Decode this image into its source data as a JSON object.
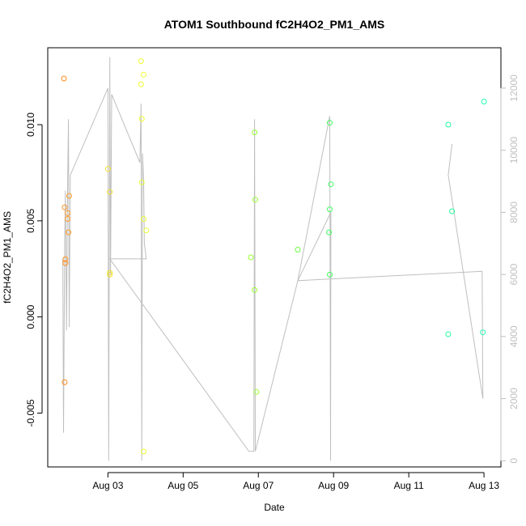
{
  "chart_data": {
    "type": "scatter",
    "title": "ATOM1 Southbound fC2H4O2_PM1_AMS",
    "xlabel": "Date",
    "ylabel": "fC2H4O2_PM1_AMS",
    "x_ticks": [
      "Aug 03",
      "Aug 05",
      "Aug 07",
      "Aug 09",
      "Aug 11",
      "Aug 13"
    ],
    "x_tick_values": [
      3,
      5,
      7,
      9,
      11,
      13
    ],
    "xlim": [
      1.4,
      13.45
    ],
    "y_ticks": [
      "-0.005",
      "0.000",
      "0.005",
      "0.010"
    ],
    "y_tick_values": [
      -0.005,
      0,
      0.005,
      0.01
    ],
    "ylim": [
      -0.0078,
      0.014
    ],
    "y2_ticks": [
      "0",
      "2000",
      "4000",
      "6000",
      "8000",
      "10000",
      "12000"
    ],
    "y2_tick_values": [
      0,
      2000,
      4000,
      6000,
      8000,
      10000,
      12000
    ],
    "y2lim": [
      -200,
      13300
    ],
    "grid": false,
    "legend": "none",
    "colors": {
      "line": "#bfbfbf",
      "points": [
        "#ff7f00",
        "#ffa500",
        "#ffd700",
        "#f5ff00",
        "#c8ff32",
        "#9aff4a",
        "#5cff62",
        "#2eff80",
        "#00ffa0"
      ]
    },
    "points": [
      {
        "x": 1.83,
        "y": 0.0124,
        "color": "#ff8c1a"
      },
      {
        "x": 1.85,
        "y": 0.0057,
        "color": "#ff9020"
      },
      {
        "x": 1.87,
        "y": 0.003,
        "color": "#ff9020"
      },
      {
        "x": 1.87,
        "y": 0.0028,
        "color": "#ff9020"
      },
      {
        "x": 1.85,
        "y": -0.0034,
        "color": "#ff8c1a"
      },
      {
        "x": 1.93,
        "y": 0.0054,
        "color": "#ff9a22"
      },
      {
        "x": 1.93,
        "y": 0.0051,
        "color": "#ff9a22"
      },
      {
        "x": 1.95,
        "y": 0.0044,
        "color": "#ff9a22"
      },
      {
        "x": 1.97,
        "y": 0.0063,
        "color": "#ffa028"
      },
      {
        "x": 3.0,
        "y": 0.0077,
        "color": "#f2e030"
      },
      {
        "x": 3.05,
        "y": 0.0065,
        "color": "#f2e030"
      },
      {
        "x": 3.05,
        "y": 0.0023,
        "color": "#f2e030"
      },
      {
        "x": 3.05,
        "y": 0.0022,
        "color": "#f2e030"
      },
      {
        "x": 3.88,
        "y": 0.0133,
        "color": "#f0ff30"
      },
      {
        "x": 3.88,
        "y": 0.0121,
        "color": "#f0ff30"
      },
      {
        "x": 3.95,
        "y": 0.0126,
        "color": "#f0ff30"
      },
      {
        "x": 3.9,
        "y": 0.0103,
        "color": "#f0ff30"
      },
      {
        "x": 3.9,
        "y": 0.007,
        "color": "#e8ff30"
      },
      {
        "x": 3.95,
        "y": 0.0051,
        "color": "#e8ff30"
      },
      {
        "x": 4.02,
        "y": 0.0045,
        "color": "#e8ff30"
      },
      {
        "x": 3.95,
        "y": -0.007,
        "color": "#e8ff30"
      },
      {
        "x": 6.8,
        "y": 0.0031,
        "color": "#9aff30"
      },
      {
        "x": 6.9,
        "y": 0.0096,
        "color": "#9aff30"
      },
      {
        "x": 6.92,
        "y": 0.0061,
        "color": "#9aff30"
      },
      {
        "x": 6.9,
        "y": 0.0014,
        "color": "#9aff30"
      },
      {
        "x": 6.95,
        "y": -0.0039,
        "color": "#9aff30"
      },
      {
        "x": 8.05,
        "y": 0.0035,
        "color": "#6aff40"
      },
      {
        "x": 8.9,
        "y": 0.0101,
        "color": "#40ff60"
      },
      {
        "x": 8.93,
        "y": 0.0069,
        "color": "#40ff60"
      },
      {
        "x": 8.9,
        "y": 0.0056,
        "color": "#40ff60"
      },
      {
        "x": 8.88,
        "y": 0.0044,
        "color": "#40ff60"
      },
      {
        "x": 8.9,
        "y": 0.0022,
        "color": "#40ff60"
      },
      {
        "x": 12.05,
        "y": 0.01,
        "color": "#20ffa0"
      },
      {
        "x": 12.15,
        "y": 0.0055,
        "color": "#20ffa0"
      },
      {
        "x": 12.05,
        "y": -0.0009,
        "color": "#20ffa0"
      },
      {
        "x": 13.0,
        "y": 0.0112,
        "color": "#20ffb0"
      },
      {
        "x": 12.97,
        "y": -0.0008,
        "color": "#20ffb0"
      }
    ],
    "line_series_y2": [
      {
        "x": 1.8,
        "y": 6500
      },
      {
        "x": 1.82,
        "y": 900
      },
      {
        "x": 1.85,
        "y": 7000
      },
      {
        "x": 1.87,
        "y": 8700
      },
      {
        "x": 1.9,
        "y": 4200
      },
      {
        "x": 1.93,
        "y": 9000
      },
      {
        "x": 1.95,
        "y": 11000
      },
      {
        "x": 1.97,
        "y": 4300
      },
      {
        "x": 2.0,
        "y": 9200
      },
      {
        "x": 3.0,
        "y": 12000
      },
      {
        "x": 3.02,
        "y": 0
      },
      {
        "x": 3.05,
        "y": 13000
      },
      {
        "x": 3.07,
        "y": 6000
      },
      {
        "x": 3.1,
        "y": 11800
      },
      {
        "x": 3.85,
        "y": 9600
      },
      {
        "x": 3.88,
        "y": 11500
      },
      {
        "x": 3.9,
        "y": 0
      },
      {
        "x": 3.92,
        "y": 9900
      },
      {
        "x": 3.95,
        "y": 9000
      },
      {
        "x": 3.97,
        "y": 7000
      },
      {
        "x": 4.0,
        "y": 6700
      },
      {
        "x": 4.02,
        "y": 6500
      },
      {
        "x": 3.05,
        "y": 6500
      },
      {
        "x": 6.75,
        "y": 300
      },
      {
        "x": 6.88,
        "y": 300
      },
      {
        "x": 6.9,
        "y": 11000
      },
      {
        "x": 6.92,
        "y": 300
      },
      {
        "x": 8.05,
        "y": 5800
      },
      {
        "x": 8.9,
        "y": 11100
      },
      {
        "x": 8.92,
        "y": 0
      },
      {
        "x": 8.93,
        "y": 8000
      },
      {
        "x": 8.05,
        "y": 5800
      },
      {
        "x": 12.95,
        "y": 6100
      },
      {
        "x": 12.97,
        "y": 2000
      },
      {
        "x": 12.05,
        "y": 9200
      },
      {
        "x": 12.15,
        "y": 10200
      }
    ]
  }
}
